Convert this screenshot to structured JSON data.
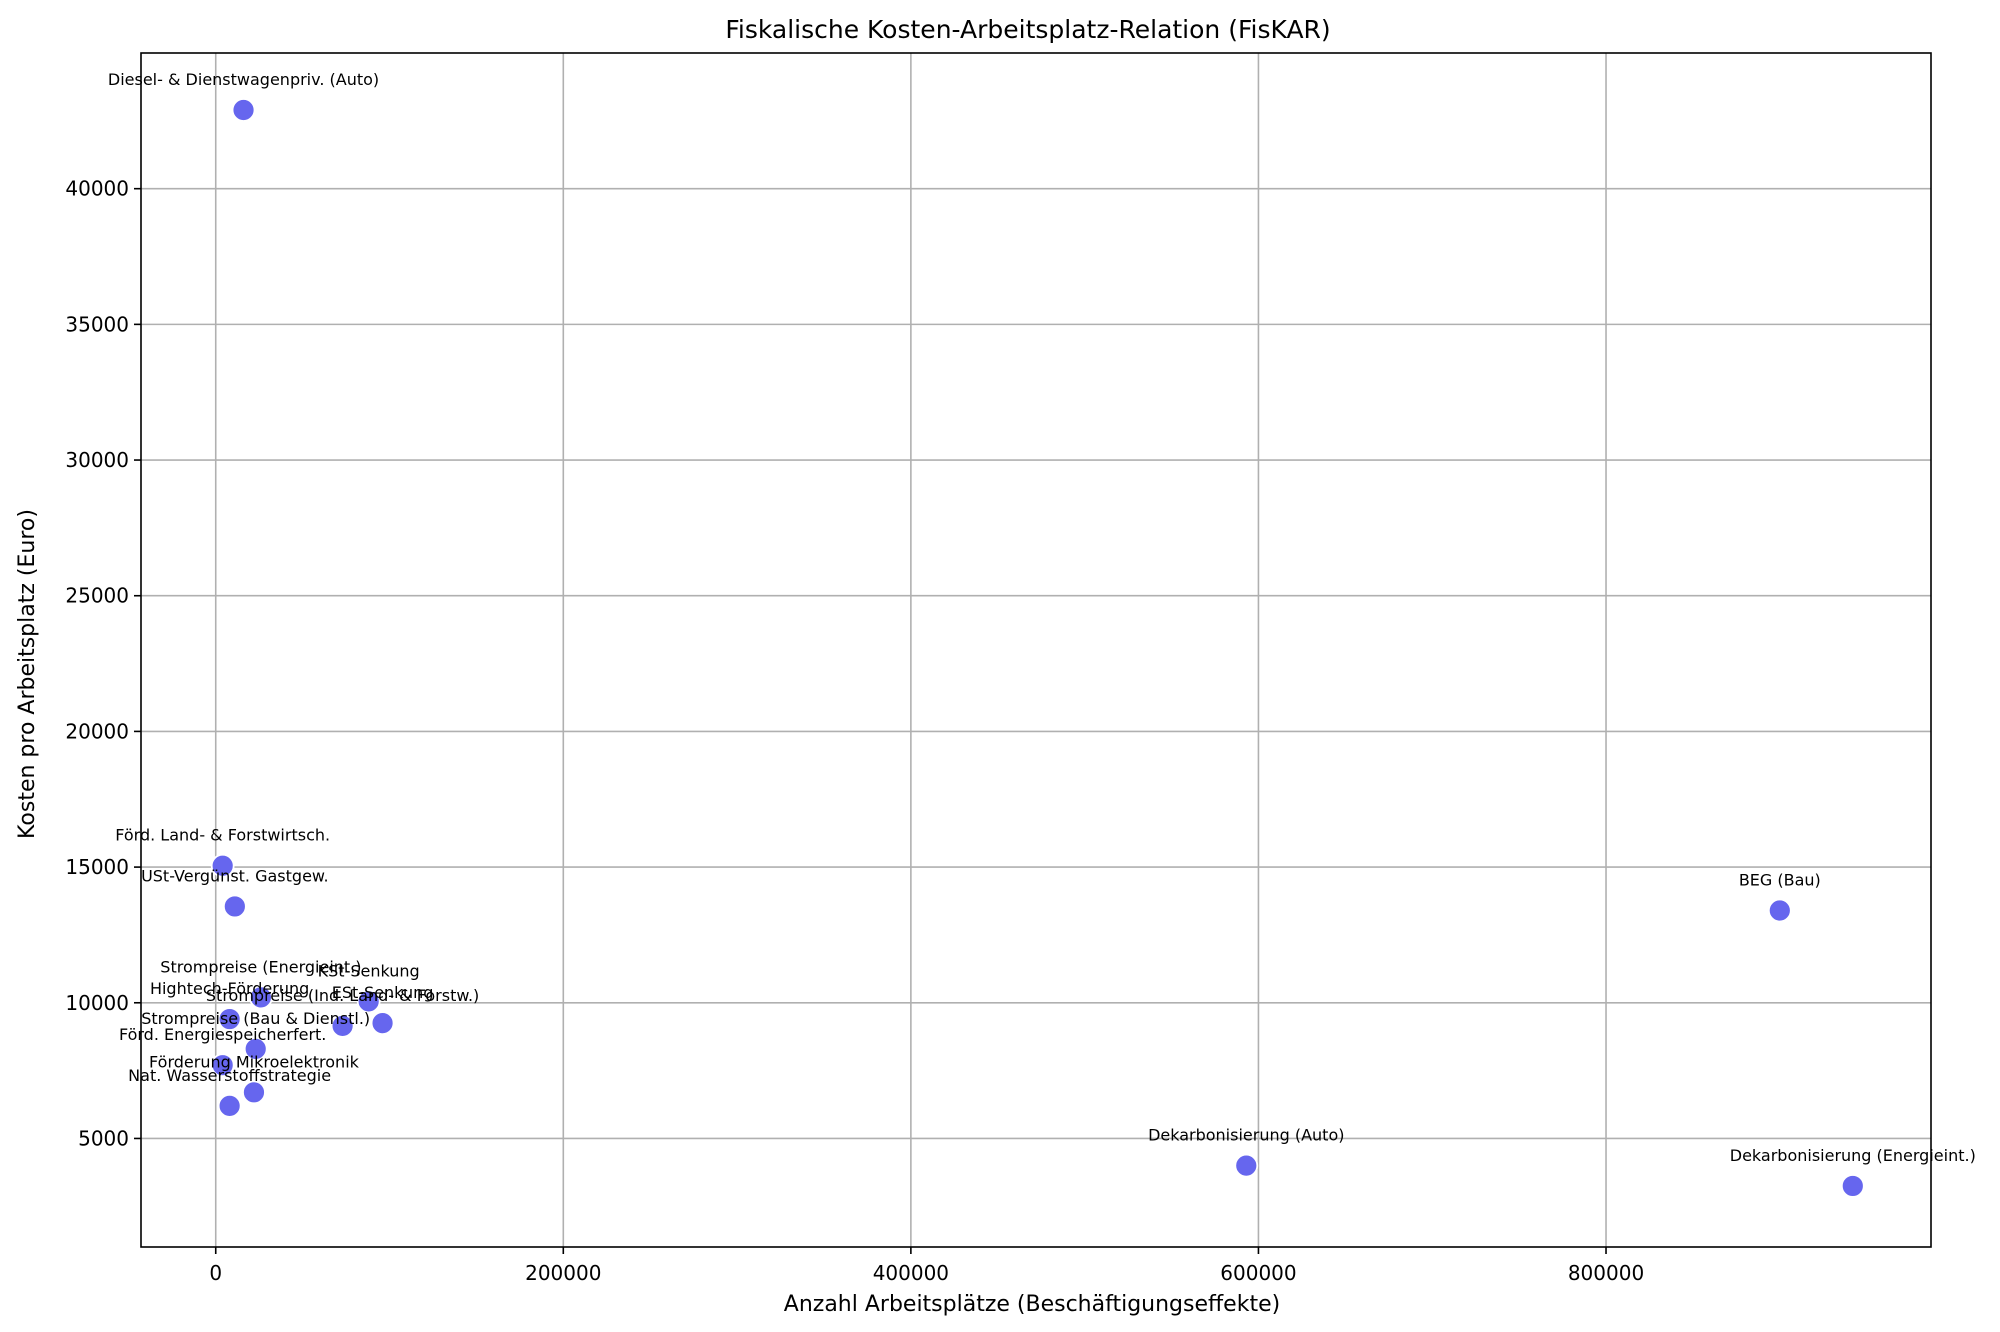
{
  "chart_data": {
    "type": "scatter",
    "title": "Fiskalische Kosten-Arbeitsplatz-Relation (FisKAR)",
    "xlabel": "Anzahl Arbeitsplätze (Beschäftigungseffekte)",
    "ylabel": "Kosten pro Arbeitsplatz (Euro)",
    "xlim": [
      -43000,
      987000
    ],
    "ylim": [
      1000,
      45000
    ],
    "xticks": [
      0,
      200000,
      400000,
      600000,
      800000
    ],
    "yticks": [
      5000,
      10000,
      15000,
      20000,
      25000,
      30000,
      35000,
      40000
    ],
    "grid": true,
    "marker_color": "#6666ee",
    "marker_edge": "#ffffff",
    "points": [
      {
        "label": "Diesel- & Dienstwagenpriv. (Auto)",
        "x": 16000,
        "y": 42900
      },
      {
        "label": "Förd. Land- & Forstwirtsch.",
        "x": 4000,
        "y": 15050
      },
      {
        "label": "USt-Vergünst. Gastgew.",
        "x": 11000,
        "y": 13550
      },
      {
        "label": "BEG (Bau)",
        "x": 900000,
        "y": 13400
      },
      {
        "label": "Strompreise (Energieint.)",
        "x": 26000,
        "y": 10200
      },
      {
        "label": "KSt-Senkung",
        "x": 88000,
        "y": 10050
      },
      {
        "label": "Hightech-Förderung",
        "x": 8000,
        "y": 9400
      },
      {
        "label": "Strompreise (Ind. Land- & Forstw.)",
        "x": 73000,
        "y": 9150
      },
      {
        "label": "ESt-Senkung",
        "x": 96000,
        "y": 9250
      },
      {
        "label": "Strompreise (Bau & Dienstl.)",
        "x": 23000,
        "y": 8300
      },
      {
        "label": "Förd. Energiespeicherfert.",
        "x": 4000,
        "y": 7700
      },
      {
        "label": "Förderung Mikroelektronik",
        "x": 22000,
        "y": 6700
      },
      {
        "label": "Nat. Wasserstoffstrategie",
        "x": 8000,
        "y": 6200
      },
      {
        "label": "Dekarbonisierung (Auto)",
        "x": 593000,
        "y": 4000
      },
      {
        "label": "Dekarbonisierung (Energieint.)",
        "x": 942000,
        "y": 3250
      }
    ]
  }
}
